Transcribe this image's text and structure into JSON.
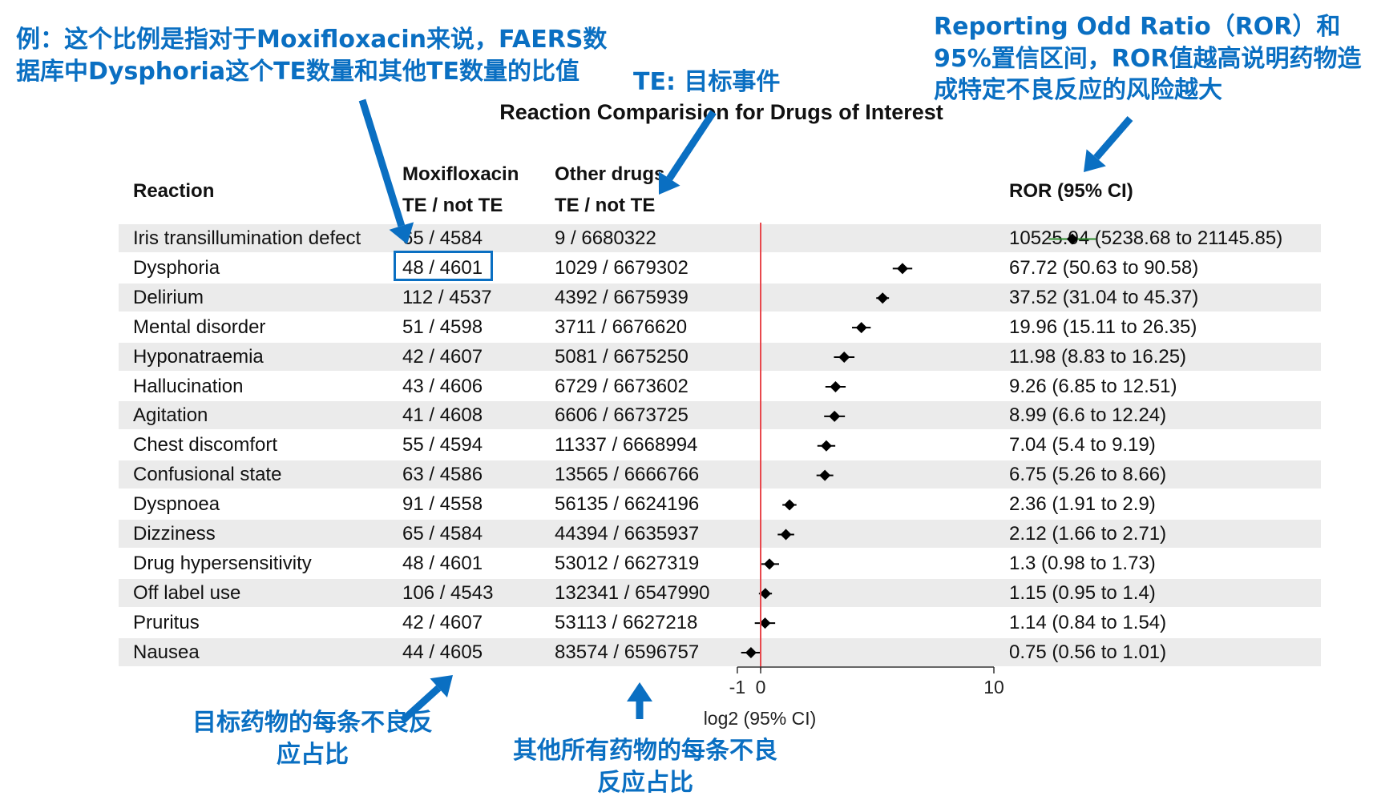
{
  "annotations": {
    "example_note": "例：这个比例是指对于Moxifloxacin来说，FAERS数据库中Dysphoria这个TE数量和其他TE数量的比值",
    "te_note": "TE: 目标事件",
    "ror_note": "Reporting Odd Ratio（ROR）和95%置信区间，ROR值越高说明药物造成特定不良反应的风险越大",
    "target_note": "目标药物的每条不良反应占比",
    "others_note": "其他所有药物的每条不良反应占比"
  },
  "colors": {
    "annotation": "#0a6fc2",
    "reference_line": "#e8484d",
    "row_band": "#ebebeb",
    "marker": "#000000",
    "ci_line": "#2e8b2e"
  },
  "chart_data": {
    "type": "forest",
    "title": "Reaction Comparision for Drugs of Interest",
    "headers": {
      "reaction": "Reaction",
      "drug": "Moxifloxacin",
      "drug_sub": "TE / not TE",
      "others": "Other drugs",
      "others_sub": "TE / not TE",
      "ror": "ROR (95% CI)"
    },
    "xlabel": "log2 (95% CI)",
    "xticks": [
      -1,
      0,
      10
    ],
    "xlim": [
      -1,
      10
    ],
    "reference_value": 0,
    "highlight_row": 1,
    "rows": [
      {
        "reaction": "Iris transillumination defect",
        "drug": "65 / 4584",
        "others": "9 / 6680322",
        "ror_text": "10525.04 (5238.68 to 21145.85)",
        "ror": 10525.04,
        "ci_low": 5238.68,
        "ci_high": 21145.85
      },
      {
        "reaction": "Dysphoria",
        "drug": "48 / 4601",
        "others": "1029 / 6679302",
        "ror_text": "67.72 (50.63 to 90.58)",
        "ror": 67.72,
        "ci_low": 50.63,
        "ci_high": 90.58
      },
      {
        "reaction": "Delirium",
        "drug": "112 / 4537",
        "others": "4392 / 6675939",
        "ror_text": "37.52 (31.04 to 45.37)",
        "ror": 37.52,
        "ci_low": 31.04,
        "ci_high": 45.37
      },
      {
        "reaction": "Mental disorder",
        "drug": "51 / 4598",
        "others": "3711 / 6676620",
        "ror_text": "19.96 (15.11 to 26.35)",
        "ror": 19.96,
        "ci_low": 15.11,
        "ci_high": 26.35
      },
      {
        "reaction": "Hyponatraemia",
        "drug": "42 / 4607",
        "others": "5081 / 6675250",
        "ror_text": "11.98 (8.83 to 16.25)",
        "ror": 11.98,
        "ci_low": 8.83,
        "ci_high": 16.25
      },
      {
        "reaction": "Hallucination",
        "drug": "43 / 4606",
        "others": "6729 / 6673602",
        "ror_text": "9.26 (6.85 to 12.51)",
        "ror": 9.26,
        "ci_low": 6.85,
        "ci_high": 12.51
      },
      {
        "reaction": "Agitation",
        "drug": "41 / 4608",
        "others": "6606 / 6673725",
        "ror_text": "8.99 (6.6 to 12.24)",
        "ror": 8.99,
        "ci_low": 6.6,
        "ci_high": 12.24
      },
      {
        "reaction": "Chest discomfort",
        "drug": "55 / 4594",
        "others": "11337 / 6668994",
        "ror_text": "7.04 (5.4 to 9.19)",
        "ror": 7.04,
        "ci_low": 5.4,
        "ci_high": 9.19
      },
      {
        "reaction": "Confusional state",
        "drug": "63 / 4586",
        "others": "13565 / 6666766",
        "ror_text": "6.75 (5.26 to 8.66)",
        "ror": 6.75,
        "ci_low": 5.26,
        "ci_high": 8.66
      },
      {
        "reaction": "Dyspnoea",
        "drug": "91 / 4558",
        "others": "56135 / 6624196",
        "ror_text": "2.36 (1.91 to 2.9)",
        "ror": 2.36,
        "ci_low": 1.91,
        "ci_high": 2.9
      },
      {
        "reaction": "Dizziness",
        "drug": "65 / 4584",
        "others": "44394 / 6635937",
        "ror_text": "2.12 (1.66 to 2.71)",
        "ror": 2.12,
        "ci_low": 1.66,
        "ci_high": 2.71
      },
      {
        "reaction": "Drug hypersensitivity",
        "drug": "48 / 4601",
        "others": "53012 / 6627319",
        "ror_text": "1.3 (0.98 to 1.73)",
        "ror": 1.3,
        "ci_low": 0.98,
        "ci_high": 1.73
      },
      {
        "reaction": "Off label use",
        "drug": "106 / 4543",
        "others": "132341 / 6547990",
        "ror_text": "1.15 (0.95 to 1.4)",
        "ror": 1.15,
        "ci_low": 0.95,
        "ci_high": 1.4
      },
      {
        "reaction": "Pruritus",
        "drug": "42 / 4607",
        "others": "53113 / 6627218",
        "ror_text": "1.14 (0.84 to 1.54)",
        "ror": 1.14,
        "ci_low": 0.84,
        "ci_high": 1.54
      },
      {
        "reaction": "Nausea",
        "drug": "44 / 4605",
        "others": "83574 / 6596757",
        "ror_text": "0.75 (0.56 to 1.01)",
        "ror": 0.75,
        "ci_low": 0.56,
        "ci_high": 1.01
      }
    ]
  }
}
